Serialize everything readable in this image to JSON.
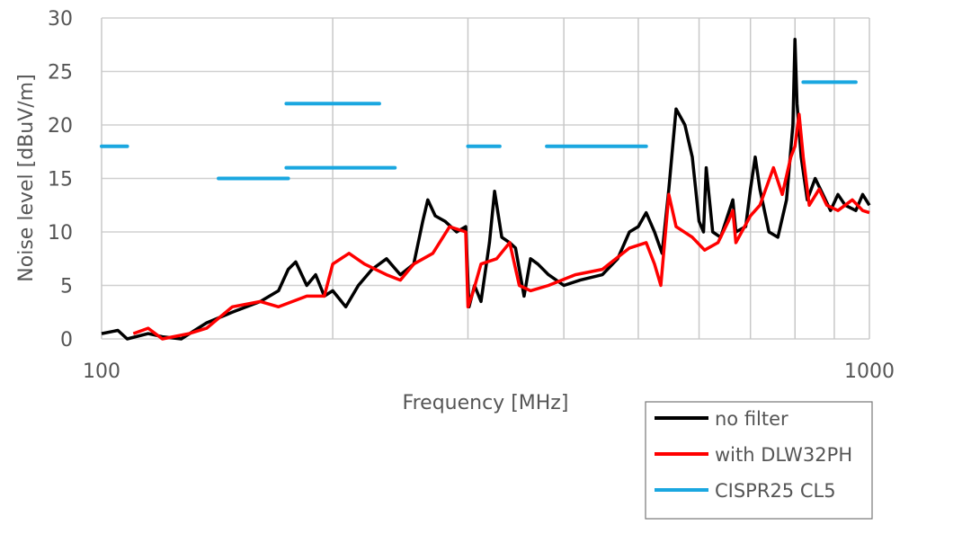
{
  "chart_data": {
    "type": "line",
    "title": "",
    "xlabel": "Frequency [MHz]",
    "ylabel": "Noise level [dBuV/m]",
    "xscale": "log",
    "xlim": [
      100,
      1000
    ],
    "ylim": [
      0,
      30
    ],
    "xticks": [
      "100",
      "1000"
    ],
    "xgrid": [
      100,
      200,
      300,
      400,
      500,
      600,
      700,
      800,
      900,
      1000
    ],
    "yticks": [
      "0",
      "5",
      "10",
      "15",
      "20",
      "25",
      "30"
    ],
    "grid": true,
    "legend_position": "bottom-right",
    "series": [
      {
        "name": "no filter",
        "color": "#000000",
        "points": [
          [
            100,
            0.5
          ],
          [
            105,
            0.8
          ],
          [
            108,
            0
          ],
          [
            115,
            0.5
          ],
          [
            120,
            0.2
          ],
          [
            127,
            0
          ],
          [
            137,
            1.5
          ],
          [
            148,
            2.5
          ],
          [
            161,
            3.5
          ],
          [
            170,
            4.5
          ],
          [
            175,
            6.5
          ],
          [
            179,
            7.2
          ],
          [
            185,
            5
          ],
          [
            190,
            6
          ],
          [
            195,
            4
          ],
          [
            200,
            4.5
          ],
          [
            208,
            3
          ],
          [
            216,
            5
          ],
          [
            225,
            6.5
          ],
          [
            235,
            7.5
          ],
          [
            245,
            6
          ],
          [
            255,
            7
          ],
          [
            262,
            11
          ],
          [
            266,
            13
          ],
          [
            272,
            11.5
          ],
          [
            280,
            11
          ],
          [
            290,
            10
          ],
          [
            298,
            10.5
          ],
          [
            301,
            3
          ],
          [
            306,
            5
          ],
          [
            312,
            3.5
          ],
          [
            320,
            9
          ],
          [
            325,
            13.8
          ],
          [
            332,
            9.5
          ],
          [
            340,
            9
          ],
          [
            346,
            8.5
          ],
          [
            355,
            4
          ],
          [
            362,
            7.5
          ],
          [
            370,
            7
          ],
          [
            382,
            6
          ],
          [
            400,
            5
          ],
          [
            420,
            5.5
          ],
          [
            449,
            6
          ],
          [
            470,
            7.5
          ],
          [
            487,
            10
          ],
          [
            500,
            10.5
          ],
          [
            512,
            11.8
          ],
          [
            525,
            10
          ],
          [
            537,
            8
          ],
          [
            548,
            14
          ],
          [
            560,
            21.5
          ],
          [
            575,
            20
          ],
          [
            588,
            17
          ],
          [
            600,
            11
          ],
          [
            608,
            10
          ],
          [
            613,
            16
          ],
          [
            625,
            10
          ],
          [
            640,
            9.5
          ],
          [
            664,
            13
          ],
          [
            670,
            10
          ],
          [
            690,
            10.5
          ],
          [
            700,
            14
          ],
          [
            710,
            17
          ],
          [
            720,
            14
          ],
          [
            740,
            10
          ],
          [
            760,
            9.5
          ],
          [
            780,
            13
          ],
          [
            795,
            20
          ],
          [
            800,
            28
          ],
          [
            805,
            22
          ],
          [
            815,
            17
          ],
          [
            830,
            13
          ],
          [
            850,
            15
          ],
          [
            870,
            13.5
          ],
          [
            890,
            12
          ],
          [
            910,
            13.5
          ],
          [
            930,
            12.5
          ],
          [
            960,
            12
          ],
          [
            980,
            13.5
          ],
          [
            1000,
            12.5
          ]
        ]
      },
      {
        "name": "with DLW32PH",
        "color": "#ff0000",
        "points": [
          [
            110,
            0.5
          ],
          [
            115,
            1
          ],
          [
            120,
            0
          ],
          [
            130,
            0.5
          ],
          [
            137,
            1
          ],
          [
            148,
            3
          ],
          [
            161,
            3.5
          ],
          [
            170,
            3
          ],
          [
            185,
            4
          ],
          [
            195,
            4
          ],
          [
            200,
            7
          ],
          [
            210,
            8
          ],
          [
            220,
            7
          ],
          [
            235,
            6
          ],
          [
            245,
            5.5
          ],
          [
            255,
            7
          ],
          [
            270,
            8
          ],
          [
            284,
            10.5
          ],
          [
            298,
            10
          ],
          [
            300,
            3
          ],
          [
            305,
            4.5
          ],
          [
            312,
            7
          ],
          [
            327,
            7.5
          ],
          [
            340,
            9
          ],
          [
            350,
            5
          ],
          [
            362,
            4.5
          ],
          [
            382,
            5
          ],
          [
            414,
            6
          ],
          [
            449,
            6.5
          ],
          [
            487,
            8.5
          ],
          [
            512,
            9
          ],
          [
            525,
            7
          ],
          [
            535,
            5
          ],
          [
            548,
            13.5
          ],
          [
            560,
            10.5
          ],
          [
            588,
            9.5
          ],
          [
            610,
            8.3
          ],
          [
            635,
            9
          ],
          [
            655,
            11
          ],
          [
            664,
            12
          ],
          [
            670,
            9
          ],
          [
            700,
            11.5
          ],
          [
            720,
            12.5
          ],
          [
            750,
            16
          ],
          [
            770,
            13.5
          ],
          [
            790,
            17
          ],
          [
            800,
            18
          ],
          [
            810,
            21
          ],
          [
            820,
            17
          ],
          [
            835,
            12.5
          ],
          [
            860,
            14
          ],
          [
            880,
            12.5
          ],
          [
            910,
            12
          ],
          [
            950,
            13
          ],
          [
            980,
            12
          ],
          [
            1000,
            11.8
          ]
        ]
      },
      {
        "name": "CISPR25 CL5",
        "color": "#1aa7e0",
        "segments": [
          [
            100,
            108,
            18
          ],
          [
            142,
            175,
            15
          ],
          [
            174,
            241,
            16
          ],
          [
            174,
            230,
            22
          ],
          [
            300,
            330,
            18
          ],
          [
            380,
            512,
            18
          ],
          [
            820,
            960,
            24
          ]
        ]
      }
    ]
  }
}
